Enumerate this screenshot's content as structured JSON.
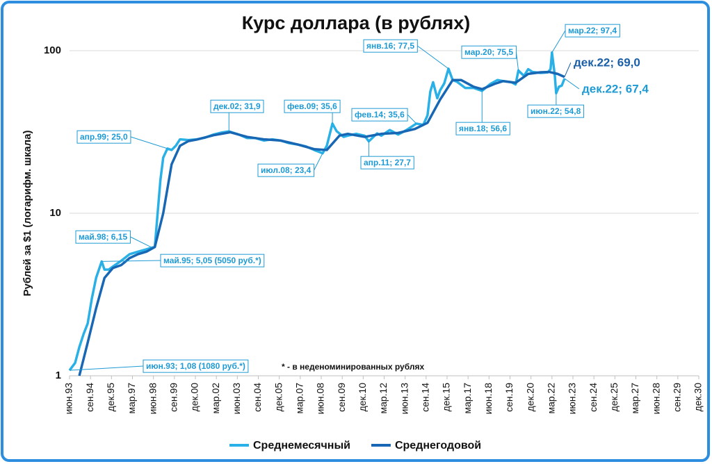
{
  "chart_data": {
    "type": "line",
    "title": "Курс доллара (в рублях)",
    "y_label": "Рублей за $1 (логарифм. шкала)",
    "note": "* - в неденоминированных рублях",
    "log_y": true,
    "grid": true,
    "ylim": [
      1,
      100
    ],
    "yticks": [
      1,
      10,
      100
    ],
    "xlim": [
      1993.417,
      2030.917
    ],
    "xticks": [
      {
        "value": 1993.417,
        "label": "июн.93"
      },
      {
        "value": 1994.667,
        "label": "сен.94"
      },
      {
        "value": 1995.917,
        "label": "дек.95"
      },
      {
        "value": 1997.167,
        "label": "мар.97"
      },
      {
        "value": 1998.417,
        "label": "июн.98"
      },
      {
        "value": 1999.667,
        "label": "сен.99"
      },
      {
        "value": 2000.917,
        "label": "дек.00"
      },
      {
        "value": 2002.167,
        "label": "мар.02"
      },
      {
        "value": 2003.417,
        "label": "июн.03"
      },
      {
        "value": 2004.667,
        "label": "сен.04"
      },
      {
        "value": 2005.917,
        "label": "дек.05"
      },
      {
        "value": 2007.167,
        "label": "мар.07"
      },
      {
        "value": 2008.417,
        "label": "июн.08"
      },
      {
        "value": 2009.667,
        "label": "сен.09"
      },
      {
        "value": 2010.917,
        "label": "дек.10"
      },
      {
        "value": 2012.167,
        "label": "мар.12"
      },
      {
        "value": 2013.417,
        "label": "июн.13"
      },
      {
        "value": 2014.667,
        "label": "сен.14"
      },
      {
        "value": 2015.917,
        "label": "дек.15"
      },
      {
        "value": 2017.167,
        "label": "мар.17"
      },
      {
        "value": 2018.417,
        "label": "июн.18"
      },
      {
        "value": 2019.667,
        "label": "сен.19"
      },
      {
        "value": 2020.917,
        "label": "дек.20"
      },
      {
        "value": 2022.167,
        "label": "мар.22"
      },
      {
        "value": 2023.417,
        "label": "июн.23"
      },
      {
        "value": 2024.667,
        "label": "сен.24"
      },
      {
        "value": 2025.917,
        "label": "дек.25"
      },
      {
        "value": 2027.167,
        "label": "мар.27"
      },
      {
        "value": 2028.417,
        "label": "июн.28"
      },
      {
        "value": 2029.667,
        "label": "сен.29"
      },
      {
        "value": 2030.917,
        "label": "дек.30"
      }
    ],
    "series": [
      {
        "name": "Среднемесячный",
        "color": "#29b0e6",
        "x": [
          1993.417,
          1993.75,
          1994.0,
          1994.25,
          1994.5,
          1994.75,
          1995.0,
          1995.333,
          1995.5,
          1995.75,
          1996.0,
          1996.5,
          1997.0,
          1997.5,
          1998.0,
          1998.333,
          1998.5,
          1998.667,
          1998.833,
          1999.0,
          1999.25,
          1999.5,
          1999.75,
          2000.0,
          2000.5,
          2001.0,
          2001.5,
          2002.0,
          2002.5,
          2002.917,
          2003.5,
          2004.0,
          2004.5,
          2005.0,
          2005.5,
          2006.0,
          2006.5,
          2007.0,
          2007.5,
          2008.0,
          2008.5,
          2008.75,
          2009.083,
          2009.333,
          2009.75,
          2010.0,
          2010.5,
          2011.0,
          2011.25,
          2011.75,
          2012.0,
          2012.5,
          2013.0,
          2013.5,
          2014.083,
          2014.5,
          2014.75,
          2014.917,
          2015.083,
          2015.333,
          2015.5,
          2015.75,
          2016.0,
          2016.25,
          2016.5,
          2017.0,
          2017.5,
          2018.0,
          2018.5,
          2018.917,
          2019.25,
          2019.75,
          2020.0,
          2020.167,
          2020.5,
          2020.75,
          2021.0,
          2021.5,
          2021.917,
          2022.083,
          2022.167,
          2022.333,
          2022.417,
          2022.583,
          2022.75,
          2022.917
        ],
        "values": [
          1.08,
          1.2,
          1.5,
          1.8,
          2.1,
          3.0,
          4.0,
          5.05,
          4.5,
          4.5,
          4.7,
          5.1,
          5.6,
          5.8,
          6.0,
          6.15,
          6.2,
          10,
          16,
          22,
          25.0,
          24.5,
          26,
          28.5,
          28.2,
          28.5,
          29.2,
          30.5,
          31.4,
          31.9,
          30.5,
          29,
          29,
          28,
          28.5,
          28,
          27,
          26.5,
          25.8,
          24.5,
          23.4,
          26,
          35.6,
          32,
          29.5,
          30,
          30.8,
          30,
          27.7,
          31,
          30,
          32.5,
          30.5,
          32.5,
          35.6,
          35,
          40,
          56,
          64,
          51,
          57,
          63,
          77.5,
          66,
          64.5,
          59,
          59,
          56.6,
          62.5,
          66,
          65,
          64,
          62,
          75.5,
          70,
          77,
          74,
          73,
          73.5,
          77,
          97.4,
          71,
          54.8,
          60,
          61,
          67.4
        ]
      },
      {
        "name": "Среднегодовой",
        "color": "#1767b4",
        "x": [
          1994.0,
          1994.5,
          1995.0,
          1995.5,
          1996.0,
          1996.5,
          1997.0,
          1997.5,
          1998.0,
          1998.5,
          1999.0,
          1999.5,
          2000.0,
          2000.5,
          2001.0,
          2002.0,
          2003.0,
          2004.0,
          2005.0,
          2006.0,
          2007.0,
          2008.0,
          2008.75,
          2009.5,
          2010.0,
          2011.0,
          2012.0,
          2013.0,
          2014.0,
          2014.75,
          2015.5,
          2016.25,
          2016.75,
          2017.5,
          2018.0,
          2018.75,
          2019.25,
          2020.0,
          2020.75,
          2021.5,
          2022.0,
          2022.5,
          2022.917
        ],
        "values": [
          1.0,
          1.6,
          2.6,
          4.0,
          4.6,
          4.8,
          5.3,
          5.6,
          5.8,
          6.2,
          10,
          20,
          26,
          27.8,
          28.4,
          30.2,
          31.5,
          29.5,
          28.5,
          28,
          26.5,
          24.8,
          24.5,
          30,
          30.8,
          29.5,
          30.8,
          31.2,
          33,
          36,
          50,
          66,
          66,
          60,
          58,
          62.5,
          65,
          63.5,
          72,
          73.7,
          74,
          72,
          69.0
        ]
      }
    ],
    "annotations": [
      {
        "text": "июн.93; 1,08 (1080 руб.*)",
        "x": 1993.417,
        "value": 1.08
      },
      {
        "text": "май.95; 5,05 (5050 руб.*)",
        "x": 1995.333,
        "value": 5.05
      },
      {
        "text": "май.98; 6,15",
        "x": 1998.333,
        "value": 6.15
      },
      {
        "text": "апр.99; 25,0",
        "x": 1999.25,
        "value": 25.0
      },
      {
        "text": "дек.02; 31,9",
        "x": 2002.917,
        "value": 31.9
      },
      {
        "text": "июл.08; 23,4",
        "x": 2008.5,
        "value": 23.4
      },
      {
        "text": "фев.09; 35,6",
        "x": 2009.083,
        "value": 35.6
      },
      {
        "text": "апр.11; 27,7",
        "x": 2011.25,
        "value": 27.7
      },
      {
        "text": "фев.14; 35,6",
        "x": 2014.083,
        "value": 35.6
      },
      {
        "text": "янв.16; 77,5",
        "x": 2016.0,
        "value": 77.5
      },
      {
        "text": "янв.18; 56,6",
        "x": 2018.0,
        "value": 56.6
      },
      {
        "text": "мар.20; 75,5",
        "x": 2020.167,
        "value": 75.5
      },
      {
        "text": "мар.22; 97,4",
        "x": 2022.167,
        "value": 97.4
      },
      {
        "text": "июн.22; 54,8",
        "x": 2022.417,
        "value": 54.8
      },
      {
        "text": "дек.22; 69,0",
        "x": 2022.917,
        "value": 69.0
      },
      {
        "text": "дек.22; 67,4",
        "x": 2022.917,
        "value": 67.4
      }
    ]
  }
}
